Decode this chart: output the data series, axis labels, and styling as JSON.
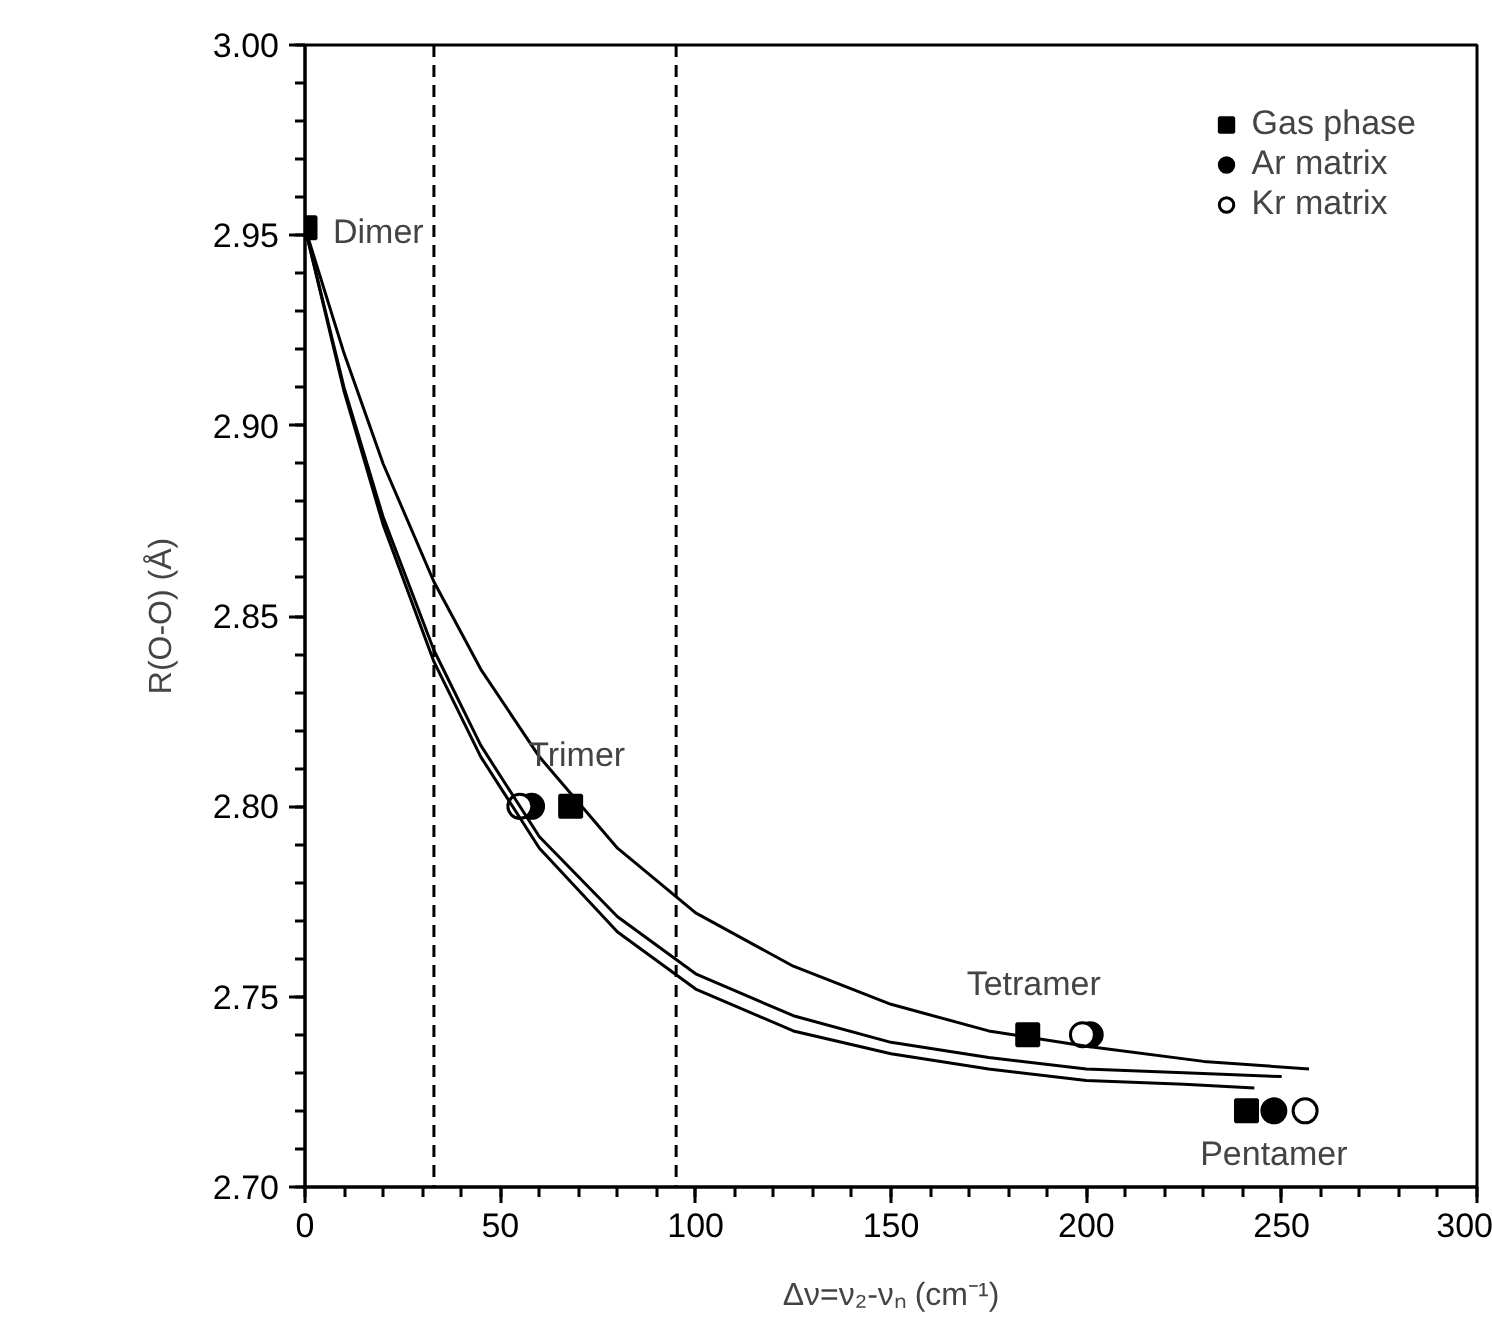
{
  "chart_data": {
    "type": "scatter",
    "xlabel": "Δν=ν₂-νₙ (cm⁻¹)",
    "ylabel": "R(O-O) (Å)",
    "xlim": [
      0,
      300
    ],
    "xticks": [
      0,
      50,
      100,
      150,
      200,
      250,
      300
    ],
    "ylim": [
      2.7,
      3.0
    ],
    "yticks": [
      {
        "value": 2.7,
        "label": "2.70"
      },
      {
        "value": 2.75,
        "label": "2.75"
      },
      {
        "value": 2.8,
        "label": "2.80"
      },
      {
        "value": 2.85,
        "label": "2.85"
      },
      {
        "value": 2.9,
        "label": "2.90"
      },
      {
        "value": 2.95,
        "label": "2.95"
      },
      {
        "value": 3.0,
        "label": "3.00"
      }
    ],
    "grid": false,
    "legend": "top right",
    "series": [
      {
        "name": "Gas phase",
        "marker": "square",
        "color": "#000000",
        "x": [
          0,
          68,
          185,
          241
        ],
        "values": [
          2.952,
          2.8,
          2.74,
          2.72
        ]
      },
      {
        "name": "Ar matrix",
        "marker": "circle",
        "color": "#000000",
        "x": [
          58,
          201,
          248
        ],
        "values": [
          2.8,
          2.74,
          2.72
        ]
      },
      {
        "name": "Kr matrix",
        "marker": "circle",
        "color": "#ffffff",
        "x": [
          55,
          199,
          256
        ],
        "values": [
          2.8,
          2.74,
          2.72
        ]
      },
      {
        "type": "line",
        "color": "#000000",
        "x": [
          0,
          10,
          20,
          33,
          45,
          60,
          80,
          100,
          125,
          150,
          175,
          200,
          230,
          257
        ],
        "values": [
          2.952,
          2.919,
          2.89,
          2.859,
          2.836,
          2.813,
          2.789,
          2.772,
          2.758,
          2.748,
          2.741,
          2.737,
          2.733,
          2.731
        ]
      },
      {
        "type": "line",
        "color": "#000000",
        "x": [
          0,
          10,
          20,
          33,
          45,
          60,
          80,
          100,
          125,
          150,
          175,
          200,
          225,
          250
        ],
        "values": [
          2.952,
          2.91,
          2.876,
          2.841,
          2.816,
          2.792,
          2.771,
          2.756,
          2.745,
          2.738,
          2.734,
          2.731,
          2.73,
          2.729
        ]
      },
      {
        "type": "line",
        "color": "#000000",
        "x": [
          0,
          10,
          20,
          33,
          45,
          60,
          80,
          100,
          125,
          150,
          175,
          200,
          225,
          243
        ],
        "values": [
          2.952,
          2.909,
          2.874,
          2.838,
          2.813,
          2.789,
          2.767,
          2.752,
          2.741,
          2.735,
          2.731,
          2.728,
          2.727,
          2.726
        ]
      }
    ],
    "ref_lines": [
      {
        "axis": "x",
        "value": 33,
        "line_style": "dashed"
      },
      {
        "axis": "x",
        "value": 95,
        "line_style": "dashed"
      }
    ],
    "annotations": [
      {
        "text": "Dimer",
        "x": 0,
        "y": 2.952
      },
      {
        "text": "Trimer",
        "x": 68,
        "y": 2.8
      },
      {
        "text": "Tetramer",
        "x": 185,
        "y": 2.74
      },
      {
        "text": "Pentamer",
        "x": 248,
        "y": 2.72
      }
    ]
  }
}
